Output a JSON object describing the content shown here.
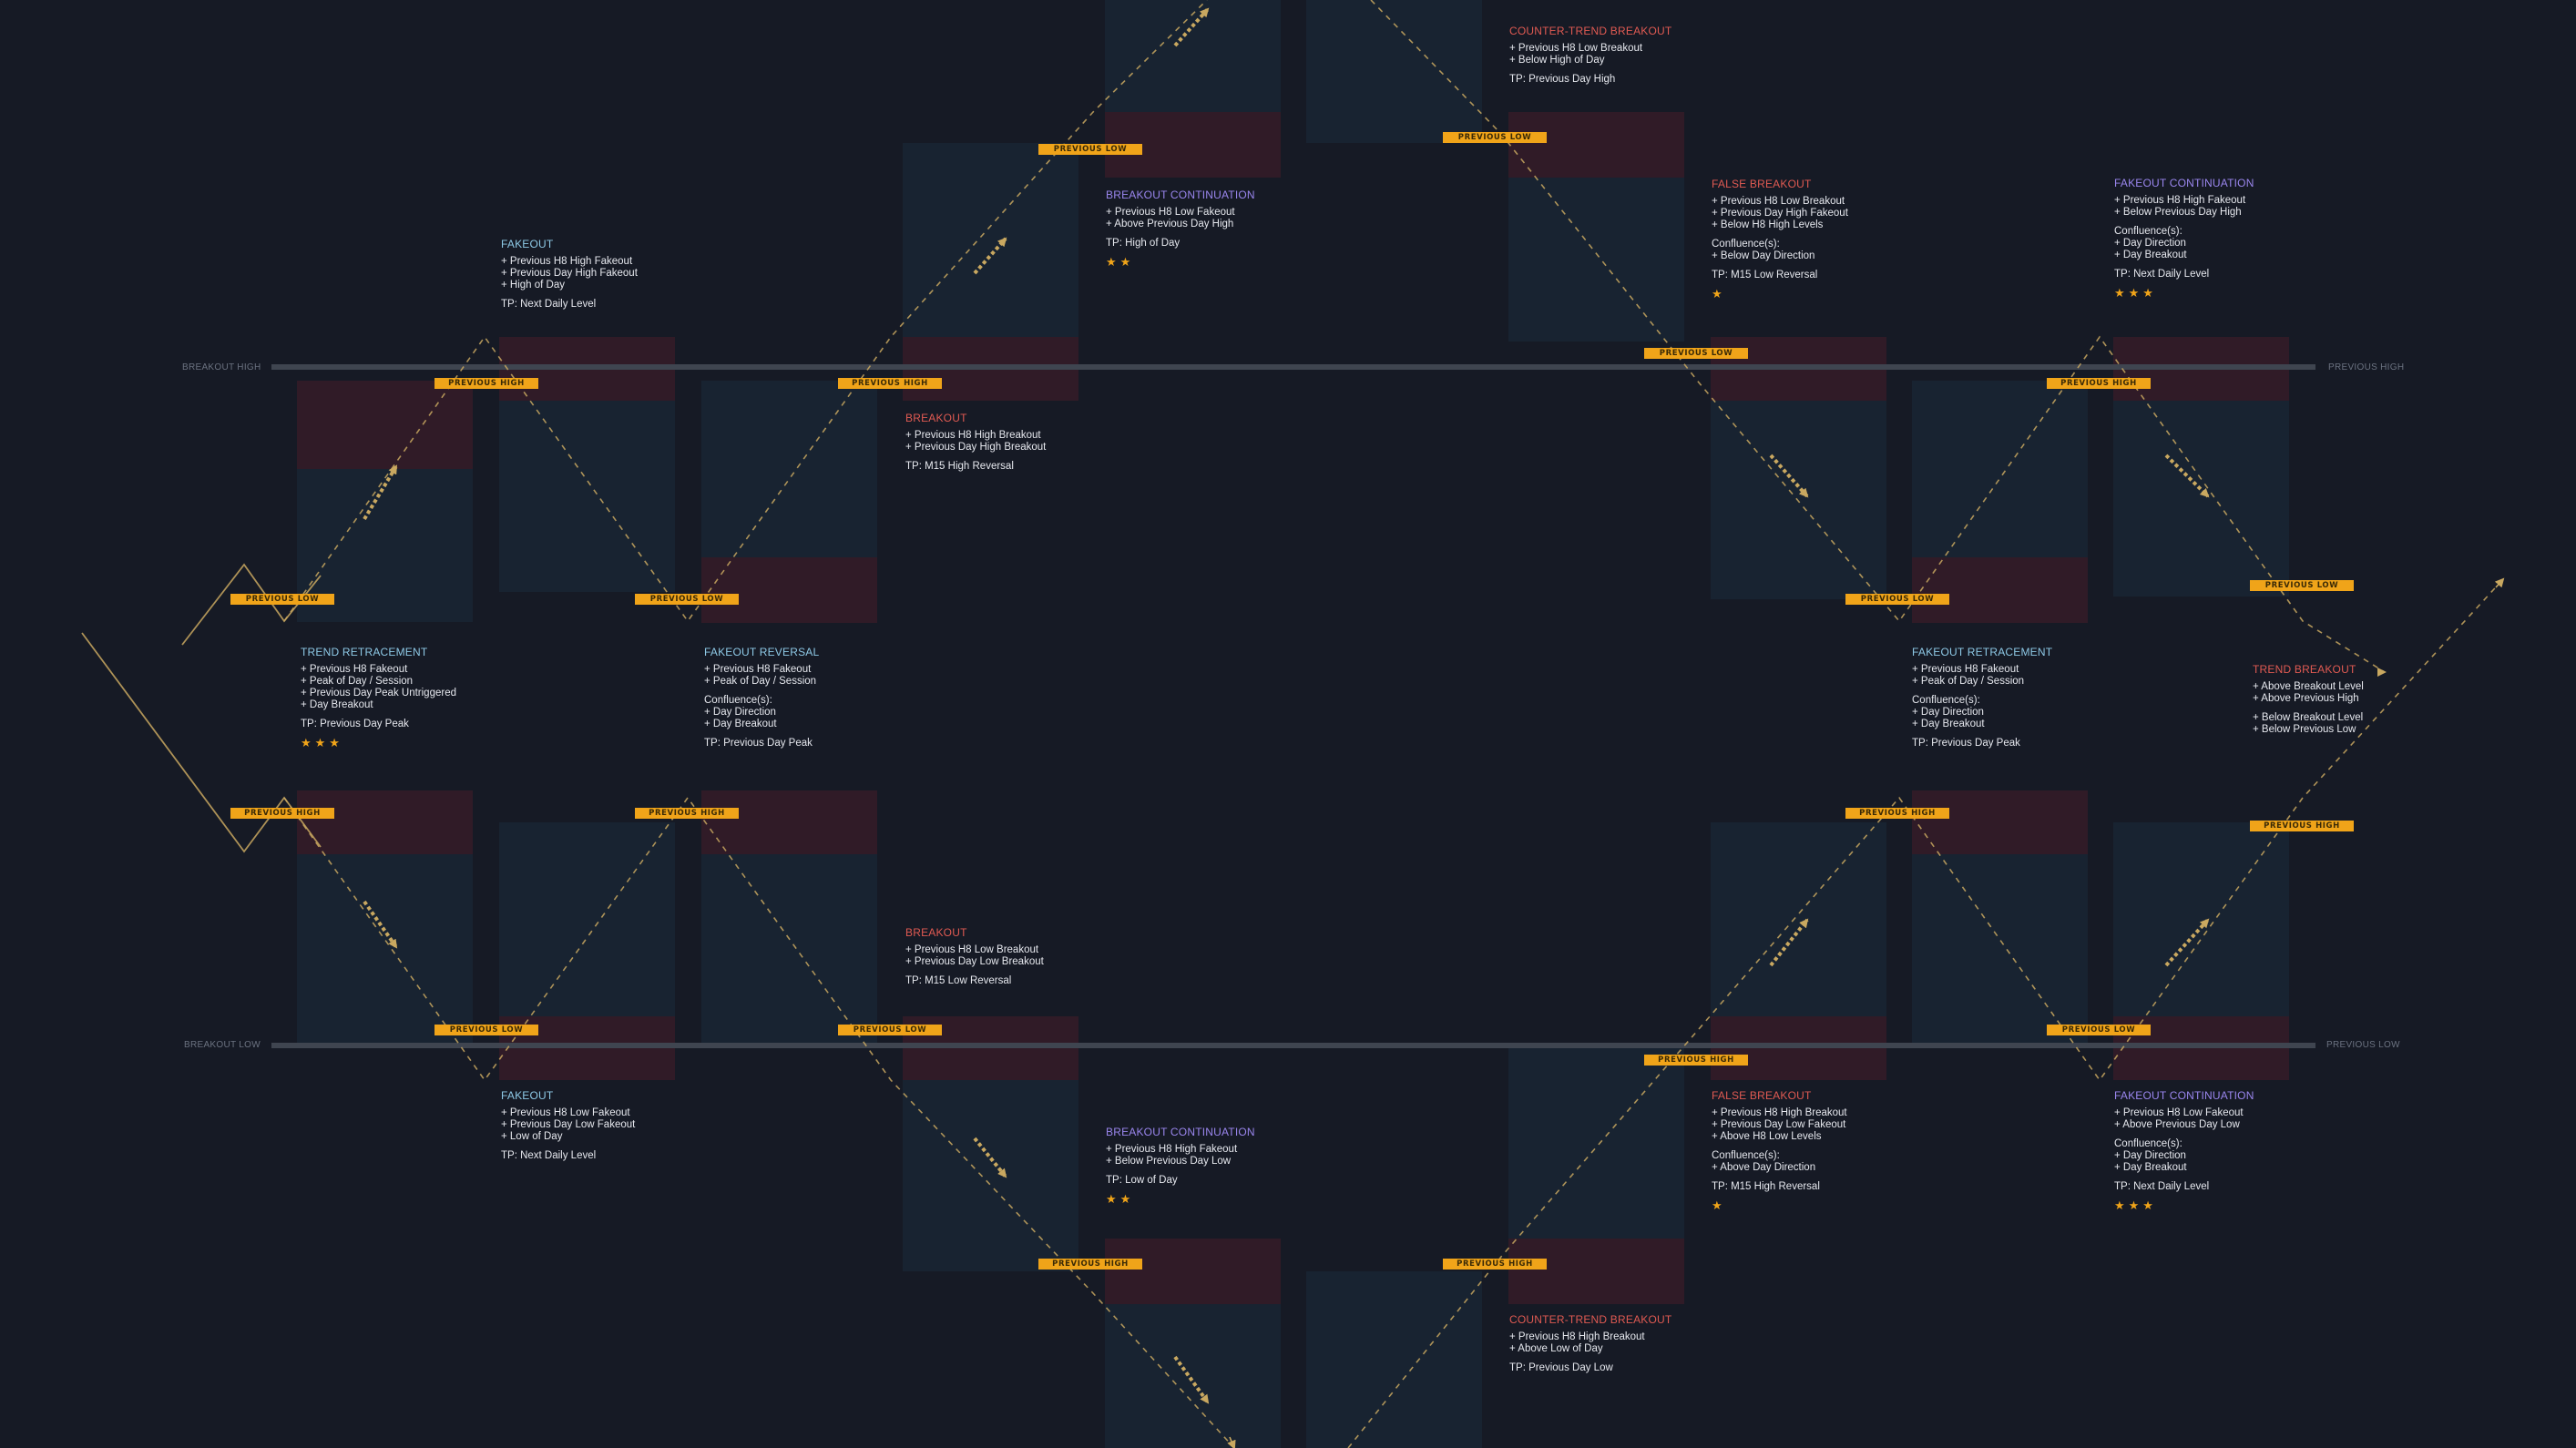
{
  "levels": {
    "breakout_high": "BREAKOUT HIGH",
    "breakout_low": "BREAKOUT LOW",
    "previous_high": "PREVIOUS HIGH",
    "previous_low": "PREVIOUS LOW"
  },
  "level_tags": {
    "previous_high": "PREVIOUS HIGH",
    "previous_low": "PREVIOUS LOW"
  },
  "colors": {
    "background": "#161a25",
    "tag": "#f0a419",
    "title_blue": "#8ec9e6",
    "title_red": "#e05a52",
    "title_purple": "#9a86ee",
    "zone_blue": "#1b2a3a",
    "zone_red": "#3a1c28"
  },
  "setups": [
    {
      "id": "fakeout-top",
      "title": "FAKEOUT",
      "color": "blue",
      "lines": [
        "+ Previous H8 High Fakeout",
        "+ Previous Day High Fakeout",
        "+ High of Day"
      ],
      "confluence": [],
      "tp": "TP: Next Daily Level",
      "stars": ""
    },
    {
      "id": "breakout-continuation-top",
      "title": "BREAKOUT CONTINUATION",
      "color": "purple",
      "lines": [
        "+ Previous H8 Low Fakeout",
        "+ Above Previous Day High"
      ],
      "confluence": [],
      "tp": "TP: High of Day",
      "stars": "★★"
    },
    {
      "id": "counter-trend-breakout-top",
      "title": "COUNTER-TREND BREAKOUT",
      "color": "red",
      "lines": [
        "+ Previous H8 Low Breakout",
        "+ Below High of Day"
      ],
      "confluence": [],
      "tp": "TP: Previous Day High",
      "stars": ""
    },
    {
      "id": "false-breakout-top",
      "title": "FALSE BREAKOUT",
      "color": "red",
      "lines": [
        "+ Previous H8 Low Breakout",
        "+ Previous Day High Fakeout",
        "+ Below H8 High Levels"
      ],
      "confluence": [
        "Confluence(s):",
        "+ Below Day Direction"
      ],
      "tp": "TP: M15 Low Reversal",
      "stars": "★"
    },
    {
      "id": "fakeout-continuation-top",
      "title": "FAKEOUT CONTINUATION",
      "color": "purple",
      "lines": [
        "+ Previous H8 High Fakeout",
        "+ Below Previous Day High"
      ],
      "confluence": [
        "Confluence(s):",
        "+ Day Direction",
        "+ Day Breakout"
      ],
      "tp": "TP: Next Daily Level",
      "stars": "★★★"
    },
    {
      "id": "breakout-top",
      "title": "BREAKOUT",
      "color": "red",
      "lines": [
        "+ Previous H8 High Breakout",
        "+ Previous Day High Breakout"
      ],
      "confluence": [],
      "tp": "TP: M15 High Reversal",
      "stars": ""
    },
    {
      "id": "trend-retracement",
      "title": "TREND RETRACEMENT",
      "color": "blue",
      "lines": [
        "+ Previous H8 Fakeout",
        "+ Peak of Day / Session",
        "+ Previous Day Peak Untriggered",
        "+ Day Breakout"
      ],
      "confluence": [],
      "tp": "TP: Previous Day Peak",
      "stars": "★★★"
    },
    {
      "id": "fakeout-reversal",
      "title": "FAKEOUT REVERSAL",
      "color": "blue",
      "lines": [
        "+ Previous H8 Fakeout",
        "+ Peak of Day / Session"
      ],
      "confluence": [
        "Confluence(s):",
        "+ Day Direction",
        "+ Day Breakout"
      ],
      "tp": "TP: Previous Day Peak",
      "stars": ""
    },
    {
      "id": "fakeout-retracement",
      "title": "FAKEOUT RETRACEMENT",
      "color": "blue",
      "lines": [
        "+ Previous H8 Fakeout",
        "+ Peak of Day / Session"
      ],
      "confluence": [
        "Confluence(s):",
        "+ Day Direction",
        "+ Day Breakout"
      ],
      "tp": "TP: Previous Day Peak",
      "stars": ""
    },
    {
      "id": "trend-breakout",
      "title": "TREND BREAKOUT",
      "color": "red",
      "lines": [
        "+ Above Breakout Level",
        "+ Above Previous High"
      ],
      "confluence": [
        "+ Below Breakout Level",
        "+ Below Previous Low"
      ],
      "tp": "",
      "stars": ""
    },
    {
      "id": "breakout-bottom",
      "title": "BREAKOUT",
      "color": "red",
      "lines": [
        "+ Previous H8 Low Breakout",
        "+ Previous Day Low Breakout"
      ],
      "confluence": [],
      "tp": "TP: M15 Low Reversal",
      "stars": ""
    },
    {
      "id": "fakeout-bottom",
      "title": "FAKEOUT",
      "color": "blue",
      "lines": [
        "+ Previous H8 Low Fakeout",
        "+ Previous Day Low Fakeout",
        "+ Low of Day"
      ],
      "confluence": [],
      "tp": "TP: Next Daily Level",
      "stars": ""
    },
    {
      "id": "breakout-continuation-bottom",
      "title": "BREAKOUT CONTINUATION",
      "color": "purple",
      "lines": [
        "+ Previous H8 High Fakeout",
        "+ Below Previous Day Low"
      ],
      "confluence": [],
      "tp": "TP: Low of Day",
      "stars": "★★"
    },
    {
      "id": "false-breakout-bottom",
      "title": "FALSE BREAKOUT",
      "color": "red",
      "lines": [
        "+ Previous H8 High Breakout",
        "+ Previous Day Low Fakeout",
        "+ Above H8 Low Levels"
      ],
      "confluence": [
        "Confluence(s):",
        "+ Above Day Direction"
      ],
      "tp": "TP: M15 High Reversal",
      "stars": "★"
    },
    {
      "id": "fakeout-continuation-bottom",
      "title": "FAKEOUT CONTINUATION",
      "color": "purple",
      "lines": [
        "+ Previous H8 Low Fakeout",
        "+ Above Previous Day Low"
      ],
      "confluence": [
        "Confluence(s):",
        "+ Day Direction",
        "+ Day Breakout"
      ],
      "tp": "TP: Next Daily Level",
      "stars": "★★★"
    },
    {
      "id": "counter-trend-breakout-bottom",
      "title": "COUNTER-TREND BREAKOUT",
      "color": "red",
      "lines": [
        "+ Previous H8 High Breakout",
        "+ Above Low of Day"
      ],
      "confluence": [],
      "tp": "TP: Previous Day Low",
      "stars": ""
    }
  ]
}
